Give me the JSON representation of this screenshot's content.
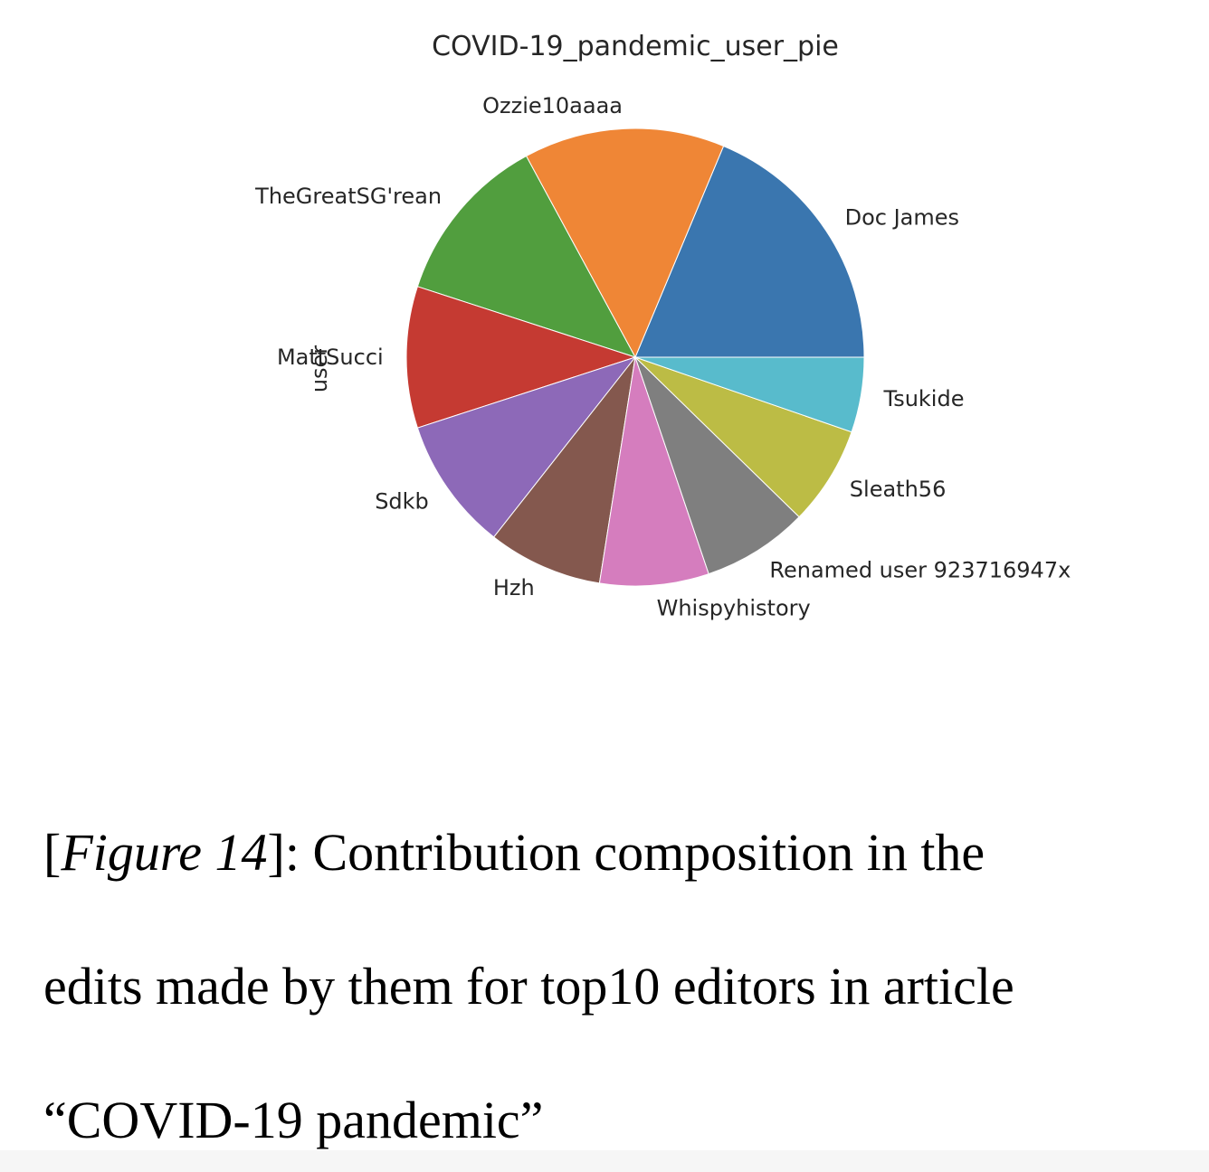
{
  "chart_data": {
    "type": "pie",
    "title": "COVID-19_pandemic_user_pie",
    "ylabel": "user",
    "categories": [
      "Doc James",
      "Ozzie10aaaa",
      "TheGreatSG'rean",
      "MattSucci",
      "Sdkb",
      "Hzh",
      "Whispyhistory",
      "Renamed user 923716947x",
      "Sleath56",
      "Tsukide"
    ],
    "values": [
      18.7,
      14.2,
      12.1,
      10.0,
      9.4,
      8.1,
      7.7,
      7.5,
      7.0,
      5.3
    ],
    "colors": [
      "#3a76af",
      "#ef8636",
      "#519e3e",
      "#c53a32",
      "#8d69b8",
      "#84584e",
      "#d57dbe",
      "#7f7f7f",
      "#bcbc45",
      "#58bbcc"
    ],
    "start_angle_deg": 0,
    "direction": "counterclockwise"
  },
  "caption": {
    "bracket_open": "[",
    "figure_label": "Figure 14",
    "bracket_close_rest": "]: Contribution composition in the",
    "line2": "edits made by them for top10 editors in article",
    "line3": "“COVID-19 pandemic”"
  }
}
